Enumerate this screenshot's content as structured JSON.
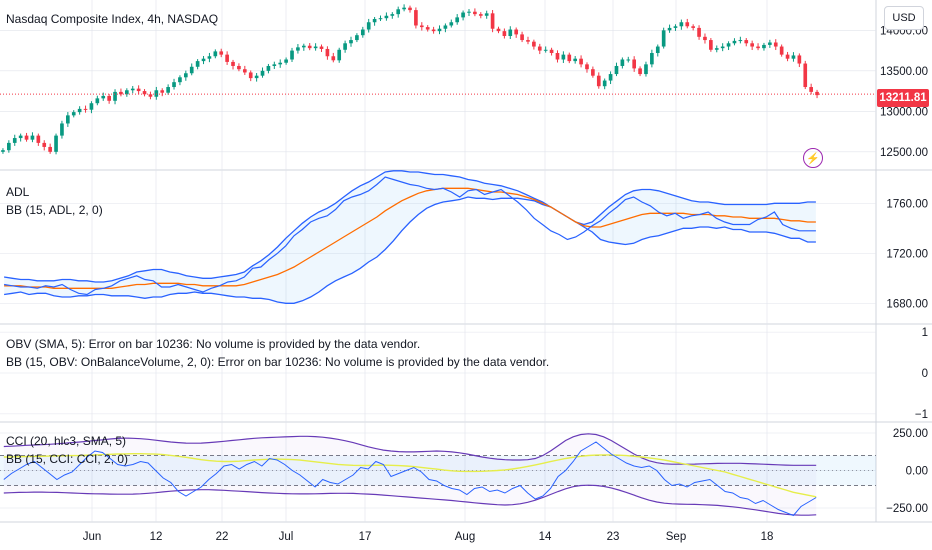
{
  "header": {
    "symbol_title": "Nasdaq Composite Index, 4h, NASDAQ"
  },
  "currency_button": "USD",
  "last_price_label": "13211.81",
  "colors": {
    "up": "#089981",
    "down": "#f23645",
    "bb": "#2962ff",
    "basis": "#ff6d00",
    "cci_line": "#7e57c2",
    "cci_sma": "#e6ee4a",
    "grid": "#e0e3eb"
  },
  "icons": {
    "alert": "lightning-bolt-icon"
  },
  "indicators": {
    "adl": {
      "line1": "ADL",
      "line2": "BB (15, ADL, 2, 0)"
    },
    "obv": {
      "line1": "OBV (SMA, 5): Error on bar 10236: No volume is provided by the data vendor.",
      "line2": "BB (15, OBV: OnBalanceVolume, 2, 0): Error on bar 10236: No volume is provided by the data vendor."
    },
    "cci": {
      "line1": "CCI (20, hlc3, SMA, 5)",
      "line2": "BB (15, CCI: CCI, 2, 0)"
    }
  },
  "time_axis": [
    "Jun",
    "12",
    "22",
    "Jul",
    "17",
    "Aug",
    "14",
    "23",
    "Sep",
    "18"
  ],
  "chart_data": [
    {
      "type": "candlestick",
      "ylim": [
        12300,
        14350
      ],
      "y_ticks": [
        "14000.00",
        "13500.00",
        "13000.00",
        "12500.00"
      ],
      "last_price": 13211.81,
      "close": [
        12520,
        12610,
        12670,
        12700,
        12650,
        12700,
        12610,
        12560,
        12500,
        12700,
        12850,
        12950,
        12990,
        13030,
        13020,
        13100,
        13160,
        13190,
        13130,
        13240,
        13210,
        13260,
        13280,
        13250,
        13210,
        13180,
        13260,
        13230,
        13300,
        13360,
        13420,
        13470,
        13550,
        13620,
        13650,
        13680,
        13740,
        13700,
        13610,
        13560,
        13520,
        13480,
        13410,
        13440,
        13500,
        13560,
        13580,
        13600,
        13640,
        13750,
        13790,
        13810,
        13780,
        13800,
        13770,
        13680,
        13630,
        13760,
        13840,
        13880,
        13940,
        14010,
        14100,
        14140,
        14150,
        14180,
        14200,
        14260,
        14280,
        14250,
        14060,
        14040,
        14010,
        13990,
        14020,
        14060,
        14100,
        14160,
        14220,
        14230,
        14200,
        14180,
        14210,
        14020,
        13990,
        13930,
        14010,
        13950,
        13880,
        13860,
        13800,
        13750,
        13760,
        13720,
        13640,
        13700,
        13620,
        13650,
        13580,
        13520,
        13440,
        13310,
        13380,
        13460,
        13560,
        13640,
        13640,
        13530,
        13460,
        13580,
        13720,
        13800,
        14000,
        14030,
        14050,
        14100,
        14050,
        14030,
        13920,
        13880,
        13760,
        13780,
        13800,
        13840,
        13870,
        13880,
        13840,
        13800,
        13780,
        13820,
        13850,
        13800,
        13700,
        13650,
        13690,
        13590,
        13300,
        13240,
        13200
      ]
    },
    {
      "type": "line",
      "title": "ADL",
      "ylim": [
        1665,
        1785
      ],
      "y_ticks": [
        "1760.00",
        "1720.00",
        "1680.00"
      ],
      "series": [
        {
          "name": "ADL",
          "values": [
            1695,
            1694,
            1693,
            1693,
            1692,
            1694,
            1693,
            1695,
            1691,
            1688,
            1687,
            1691,
            1692,
            1694,
            1698,
            1700,
            1702,
            1699,
            1698,
            1693,
            1693,
            1695,
            1693,
            1691,
            1689,
            1692,
            1694,
            1697,
            1698,
            1701,
            1708,
            1709,
            1715,
            1720,
            1726,
            1734,
            1739,
            1745,
            1748,
            1750,
            1755,
            1762,
            1765,
            1767,
            1770,
            1775,
            1781,
            1779,
            1777,
            1775,
            1774,
            1772,
            1771,
            1772,
            1769,
            1765,
            1770,
            1771,
            1767,
            1769,
            1771,
            1766,
            1761,
            1755,
            1748,
            1743,
            1738,
            1735,
            1731,
            1733,
            1737,
            1742,
            1746,
            1752,
            1757,
            1763,
            1765,
            1761,
            1758,
            1753,
            1750,
            1752,
            1748,
            1750,
            1751,
            1753,
            1748,
            1745,
            1743,
            1743,
            1743,
            1747,
            1749,
            1753,
            1743,
            1740,
            1738,
            1738,
            1738
          ]
        },
        {
          "name": "BB upper",
          "values": [
            1701,
            1700,
            1699,
            1699,
            1698,
            1698,
            1698,
            1699,
            1699,
            1698,
            1698,
            1697,
            1697,
            1698,
            1700,
            1702,
            1705,
            1706,
            1707,
            1707,
            1705,
            1704,
            1702,
            1701,
            1700,
            1700,
            1701,
            1702,
            1703,
            1705,
            1710,
            1714,
            1719,
            1725,
            1732,
            1738,
            1744,
            1749,
            1753,
            1756,
            1760,
            1765,
            1770,
            1774,
            1777,
            1781,
            1785,
            1786,
            1786,
            1785,
            1785,
            1784,
            1783,
            1783,
            1782,
            1781,
            1779,
            1778,
            1776,
            1775,
            1774,
            1772,
            1770,
            1767,
            1764,
            1761,
            1757,
            1753,
            1749,
            1745,
            1743,
            1745,
            1751,
            1757,
            1762,
            1767,
            1770,
            1771,
            1771,
            1770,
            1768,
            1766,
            1764,
            1762,
            1761,
            1761,
            1760,
            1759,
            1759,
            1759,
            1759,
            1759,
            1759,
            1760,
            1760,
            1760,
            1760,
            1761,
            1761
          ]
        },
        {
          "name": "BB basis",
          "values": [
            1694,
            1694,
            1694,
            1693,
            1693,
            1693,
            1692,
            1692,
            1692,
            1692,
            1692,
            1692,
            1692,
            1692,
            1693,
            1694,
            1695,
            1695,
            1696,
            1696,
            1696,
            1696,
            1695,
            1695,
            1694,
            1694,
            1694,
            1694,
            1694,
            1695,
            1697,
            1699,
            1701,
            1703,
            1706,
            1709,
            1713,
            1717,
            1721,
            1725,
            1729,
            1733,
            1737,
            1741,
            1745,
            1749,
            1754,
            1758,
            1762,
            1765,
            1768,
            1770,
            1771,
            1772,
            1772,
            1772,
            1772,
            1771,
            1770,
            1769,
            1769,
            1768,
            1767,
            1765,
            1763,
            1760,
            1757,
            1753,
            1749,
            1745,
            1742,
            1741,
            1741,
            1743,
            1745,
            1747,
            1749,
            1751,
            1752,
            1752,
            1752,
            1752,
            1752,
            1751,
            1751,
            1751,
            1750,
            1750,
            1749,
            1749,
            1748,
            1748,
            1748,
            1748,
            1747,
            1746,
            1746,
            1745,
            1745
          ]
        },
        {
          "name": "BB lower",
          "values": [
            1687,
            1688,
            1689,
            1687,
            1688,
            1688,
            1686,
            1685,
            1685,
            1686,
            1686,
            1687,
            1687,
            1686,
            1686,
            1686,
            1685,
            1684,
            1685,
            1685,
            1687,
            1688,
            1688,
            1689,
            1688,
            1688,
            1687,
            1686,
            1685,
            1685,
            1684,
            1684,
            1683,
            1681,
            1680,
            1680,
            1682,
            1685,
            1689,
            1694,
            1698,
            1701,
            1704,
            1708,
            1713,
            1717,
            1723,
            1730,
            1738,
            1745,
            1751,
            1756,
            1759,
            1761,
            1762,
            1763,
            1765,
            1764,
            1764,
            1763,
            1764,
            1764,
            1764,
            1763,
            1762,
            1759,
            1757,
            1753,
            1749,
            1745,
            1741,
            1737,
            1731,
            1729,
            1728,
            1727,
            1728,
            1731,
            1733,
            1734,
            1736,
            1738,
            1740,
            1740,
            1741,
            1741,
            1740,
            1741,
            1739,
            1739,
            1737,
            1737,
            1737,
            1736,
            1734,
            1732,
            1732,
            1729,
            1729
          ]
        }
      ]
    },
    {
      "type": "line",
      "title": "OBV (SMA, 5)",
      "ylim": [
        -1.15,
        1.15
      ],
      "y_ticks": [
        "1",
        "0",
        "−1"
      ],
      "series": []
    },
    {
      "type": "line",
      "title": "CCI (20, hlc3, SMA, 5)",
      "ylim": [
        -330,
        310
      ],
      "y_ticks": [
        "250.00",
        "0.00",
        "−250.00"
      ],
      "band": [
        100,
        -100
      ],
      "series": [
        {
          "name": "CCI",
          "values": [
            -60,
            -20,
            10,
            40,
            60,
            20,
            -20,
            -60,
            -30,
            -10,
            40,
            90,
            130,
            120,
            80,
            40,
            30,
            40,
            60,
            50,
            0,
            -50,
            -80,
            -140,
            -170,
            -140,
            -110,
            -60,
            -20,
            30,
            40,
            10,
            40,
            60,
            30,
            80,
            70,
            40,
            0,
            -30,
            -70,
            -110,
            -60,
            -80,
            -90,
            -60,
            -30,
            20,
            10,
            60,
            40,
            -40,
            -20,
            0,
            20,
            -10,
            -60,
            -70,
            -100,
            -120,
            -130,
            -160,
            -120,
            -110,
            -140,
            -130,
            -150,
            -120,
            -100,
            -150,
            -190,
            -170,
            -120,
            -40,
            0,
            60,
            130,
            160,
            190,
            150,
            110,
            80,
            50,
            30,
            20,
            30,
            0,
            -60,
            -100,
            -90,
            -110,
            -80,
            -70,
            -60,
            -100,
            -140,
            -150,
            -180,
            -190,
            -220,
            -200,
            -230,
            -260,
            -280,
            -300,
            -240,
            -210,
            -180
          ]
        },
        {
          "name": "CCI SMA",
          "values": [
            90,
            91,
            92,
            93,
            94,
            95,
            96,
            97,
            98,
            99,
            100,
            102,
            104,
            106,
            108,
            110,
            111,
            112,
            112,
            111,
            109,
            106,
            101,
            95,
            88,
            80,
            72,
            66,
            62,
            60,
            60,
            62,
            66,
            70,
            73,
            75,
            76,
            75,
            73,
            69,
            64,
            58,
            52,
            46,
            41,
            37,
            35,
            34,
            34,
            35,
            36,
            35,
            33,
            30,
            26,
            21,
            15,
            9,
            3,
            -2,
            -5,
            -6,
            -6,
            -5,
            -3,
            0,
            4,
            10,
            18,
            27,
            37,
            48,
            59,
            70,
            80,
            88,
            95,
            100,
            103,
            104,
            104,
            102,
            99,
            95,
            90,
            84,
            77,
            69,
            60,
            50,
            40,
            30,
            20,
            10,
            0,
            -10,
            -25,
            -40,
            -55,
            -70,
            -85,
            -100,
            -115,
            -130,
            -145,
            -155,
            -165,
            -175
          ]
        },
        {
          "name": "BB upper",
          "values": [
            160,
            162,
            165,
            168,
            170,
            172,
            175,
            178,
            182,
            186,
            190,
            195,
            200,
            205,
            210,
            214,
            216,
            215,
            212,
            208,
            202,
            196,
            190,
            186,
            183,
            182,
            183,
            186,
            190,
            195,
            200,
            205,
            210,
            215,
            218,
            220,
            222,
            224,
            226,
            228,
            228,
            226,
            222,
            216,
            208,
            198,
            186,
            172,
            158,
            146,
            136,
            130,
            126,
            124,
            124,
            126,
            128,
            130,
            128,
            124,
            118,
            110,
            100,
            90,
            82,
            76,
            72,
            70,
            70,
            72,
            80,
            100,
            130,
            165,
            200,
            225,
            240,
            245,
            240,
            225,
            200,
            170,
            140,
            110,
            85,
            65,
            52,
            45,
            42,
            42,
            42,
            43,
            45,
            46,
            47,
            48,
            48,
            48,
            46,
            44,
            42,
            40,
            38,
            36,
            35,
            35,
            35,
            35
          ]
        },
        {
          "name": "BB lower",
          "values": [
            -150,
            -148,
            -146,
            -145,
            -144,
            -144,
            -145,
            -146,
            -148,
            -150,
            -152,
            -154,
            -155,
            -156,
            -157,
            -158,
            -158,
            -157,
            -155,
            -152,
            -148,
            -143,
            -138,
            -134,
            -131,
            -129,
            -128,
            -128,
            -130,
            -132,
            -135,
            -138,
            -141,
            -144,
            -147,
            -150,
            -152,
            -154,
            -155,
            -156,
            -156,
            -155,
            -154,
            -153,
            -152,
            -152,
            -153,
            -155,
            -157,
            -160,
            -164,
            -168,
            -172,
            -176,
            -180,
            -184,
            -188,
            -192,
            -196,
            -200,
            -205,
            -210,
            -215,
            -220,
            -224,
            -228,
            -230,
            -228,
            -222,
            -212,
            -198,
            -180,
            -160,
            -140,
            -122,
            -108,
            -100,
            -98,
            -100,
            -106,
            -116,
            -130,
            -146,
            -164,
            -182,
            -198,
            -210,
            -218,
            -222,
            -224,
            -225,
            -226,
            -228,
            -230,
            -233,
            -237,
            -242,
            -248,
            -255,
            -262,
            -270,
            -278,
            -286,
            -292,
            -296,
            -298,
            -298,
            -295
          ]
        }
      ]
    }
  ]
}
